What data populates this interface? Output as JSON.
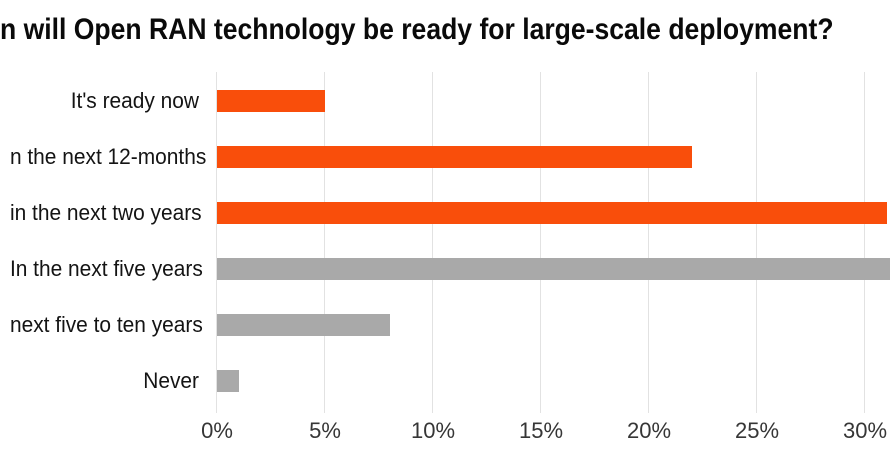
{
  "colors": {
    "background": "#ffffff",
    "bar_orange": "#f94e0b",
    "bar_gray": "#a9a9a9",
    "gridline": "#e2e2e2",
    "title_text": "#0a0a0a",
    "category_text": "#141414",
    "tick_text": "#363636"
  },
  "chart_data": {
    "type": "bar",
    "orientation": "horizontal",
    "title": "n will Open RAN technology be ready for large-scale deployment?",
    "title_note": "title is cropped at the left edge of the screenshot",
    "categories": [
      "It's ready now",
      "n the next 12-months",
      "in the next two years",
      "In the next five years",
      "next five to ten years",
      "Never"
    ],
    "categories_note": "labels 2, 3 and 5 are cropped at the left edge of the screenshot",
    "values": [
      5,
      22,
      31,
      33,
      8,
      1
    ],
    "values_note": "read from gridlines; 'In the next five years' bar is cut off by the right image edge (>=31%), estimated 33%",
    "bar_colors": [
      "#f94e0b",
      "#f94e0b",
      "#f94e0b",
      "#a9a9a9",
      "#a9a9a9",
      "#a9a9a9"
    ],
    "x_ticks": [
      {
        "value": 0,
        "label": "0%"
      },
      {
        "value": 5,
        "label": "5%"
      },
      {
        "value": 10,
        "label": "10%"
      },
      {
        "value": 15,
        "label": "15%"
      },
      {
        "value": 20,
        "label": "20%"
      },
      {
        "value": 25,
        "label": "25%"
      },
      {
        "value": 30,
        "label": "30%"
      }
    ],
    "xlabel": "",
    "ylabel": "",
    "xlim_visible": [
      0,
      31.2
    ],
    "grid": "vertical-only",
    "legend": "none"
  }
}
